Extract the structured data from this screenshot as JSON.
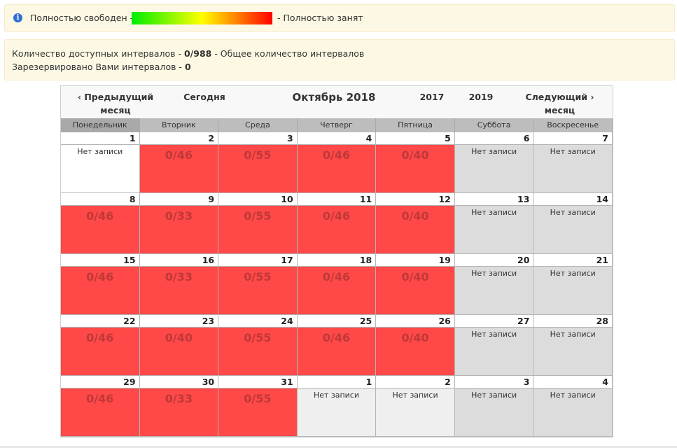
{
  "legend": {
    "icon": "info-icon",
    "free_label": "Полностью свободен -",
    "busy_label": "- Полностью занят",
    "gradient_colors": [
      "#00ee00",
      "#ffff00",
      "#ff0000"
    ]
  },
  "info": {
    "available_prefix": "Количество доступных интервалов -",
    "available_value": "0/988",
    "available_suffix": "- Общее количество интервалов",
    "reserved_prefix": "Зарезервировано Вами интервалов -",
    "reserved_value": "0"
  },
  "nav": {
    "prev_label": "‹ Предыдущий месяц",
    "today_label": "Сегодня",
    "month_title": "Октябрь 2018",
    "year_prev": "2017",
    "year_next": "2019",
    "next_label": "Следующий › месяц"
  },
  "weekdays": [
    "Понедельник",
    "Вторник",
    "Среда",
    "Четверг",
    "Пятница",
    "Суббота",
    "Воскресенье"
  ],
  "colors": {
    "busy": "#ff4848",
    "weekend": "#dcdcdc",
    "other_month": "#efefef",
    "count_text": "#c03838"
  },
  "weeks": [
    [
      {
        "day": "1",
        "text": "Нет записи",
        "type": "white"
      },
      {
        "day": "2",
        "text": "0/46",
        "type": "red"
      },
      {
        "day": "3",
        "text": "0/55",
        "type": "red"
      },
      {
        "day": "4",
        "text": "0/46",
        "type": "red"
      },
      {
        "day": "5",
        "text": "0/40",
        "type": "red"
      },
      {
        "day": "6",
        "text": "Нет записи",
        "type": "gray"
      },
      {
        "day": "7",
        "text": "Нет записи",
        "type": "gray"
      }
    ],
    [
      {
        "day": "8",
        "text": "0/46",
        "type": "red"
      },
      {
        "day": "9",
        "text": "0/33",
        "type": "red"
      },
      {
        "day": "10",
        "text": "0/55",
        "type": "red"
      },
      {
        "day": "11",
        "text": "0/46",
        "type": "red"
      },
      {
        "day": "12",
        "text": "0/40",
        "type": "red"
      },
      {
        "day": "13",
        "text": "Нет записи",
        "type": "gray"
      },
      {
        "day": "14",
        "text": "Нет записи",
        "type": "gray"
      }
    ],
    [
      {
        "day": "15",
        "text": "0/46",
        "type": "red"
      },
      {
        "day": "16",
        "text": "0/33",
        "type": "red"
      },
      {
        "day": "17",
        "text": "0/55",
        "type": "red"
      },
      {
        "day": "18",
        "text": "0/46",
        "type": "red"
      },
      {
        "day": "19",
        "text": "0/40",
        "type": "red"
      },
      {
        "day": "20",
        "text": "Нет записи",
        "type": "gray"
      },
      {
        "day": "21",
        "text": "Нет записи",
        "type": "gray"
      }
    ],
    [
      {
        "day": "22",
        "text": "0/46",
        "type": "red"
      },
      {
        "day": "23",
        "text": "0/40",
        "type": "red"
      },
      {
        "day": "24",
        "text": "0/55",
        "type": "red"
      },
      {
        "day": "25",
        "text": "0/46",
        "type": "red"
      },
      {
        "day": "26",
        "text": "0/40",
        "type": "red"
      },
      {
        "day": "27",
        "text": "Нет записи",
        "type": "gray"
      },
      {
        "day": "28",
        "text": "Нет записи",
        "type": "gray"
      }
    ],
    [
      {
        "day": "29",
        "text": "0/46",
        "type": "red"
      },
      {
        "day": "30",
        "text": "0/33",
        "type": "red"
      },
      {
        "day": "31",
        "text": "0/55",
        "type": "red"
      },
      {
        "day": "1",
        "text": "Нет записи",
        "type": "light"
      },
      {
        "day": "2",
        "text": "Нет записи",
        "type": "light"
      },
      {
        "day": "3",
        "text": "Нет записи",
        "type": "gray"
      },
      {
        "day": "4",
        "text": "Нет записи",
        "type": "gray"
      }
    ]
  ]
}
